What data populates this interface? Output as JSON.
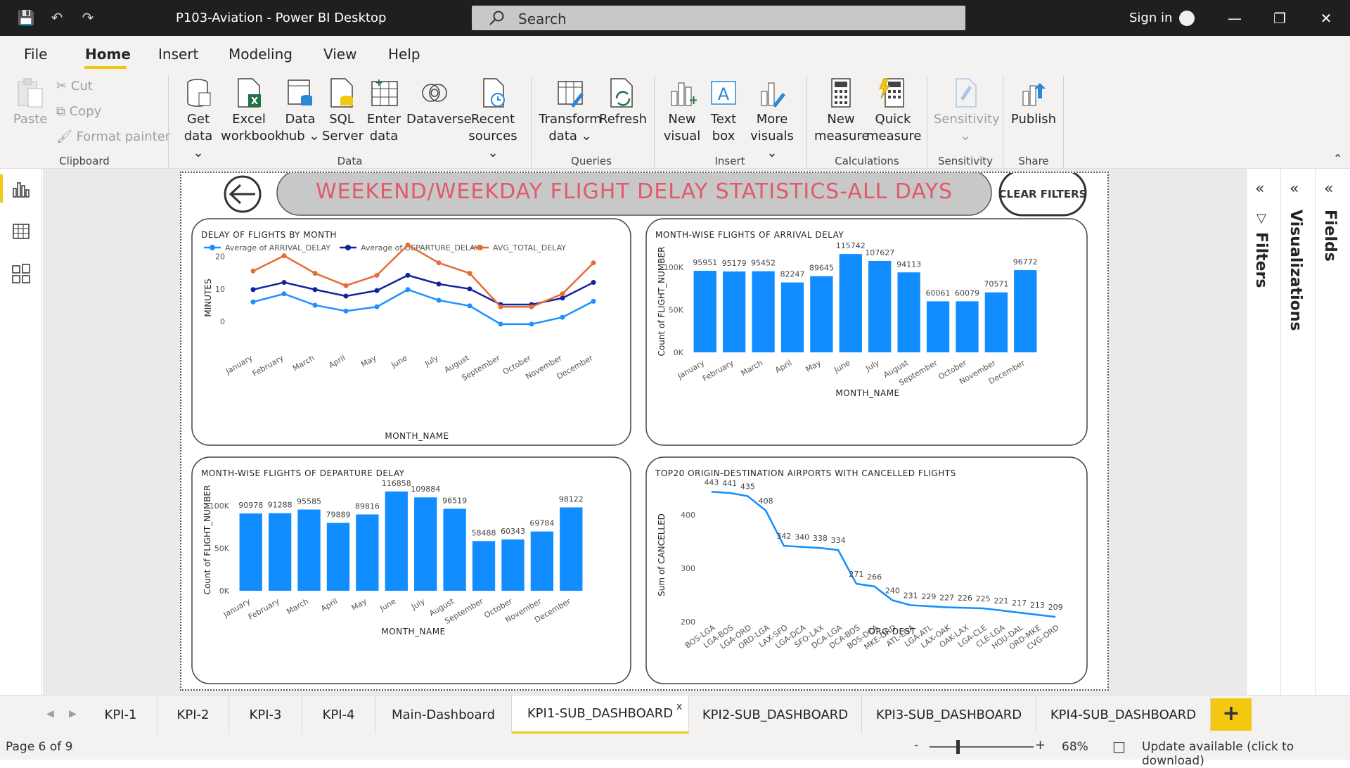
{
  "window": {
    "title": "P103-Aviation - Power BI Desktop",
    "search_placeholder": "Search",
    "sign_in": "Sign in"
  },
  "menu": [
    "File",
    "Home",
    "Insert",
    "Modeling",
    "View",
    "Help"
  ],
  "ribbon": {
    "clipboard": {
      "paste": "Paste",
      "cut": "Cut",
      "copy": "Copy",
      "format_painter": "Format painter",
      "group": "Clipboard"
    },
    "data": {
      "get_data": [
        "Get",
        "data ⌄"
      ],
      "excel": [
        "Excel",
        "workbook"
      ],
      "data_hub": [
        "Data",
        "hub ⌄"
      ],
      "sql": [
        "SQL",
        "Server"
      ],
      "enter": [
        "Enter",
        "data"
      ],
      "dataverse": [
        "Dataverse",
        ""
      ],
      "recent": [
        "Recent",
        "sources ⌄"
      ],
      "group": "Data"
    },
    "queries": {
      "transform": [
        "Transform",
        "data ⌄"
      ],
      "refresh": [
        "Refresh",
        ""
      ],
      "group": "Queries"
    },
    "insert": {
      "new_visual": [
        "New",
        "visual"
      ],
      "text_box": [
        "Text",
        "box"
      ],
      "more_visuals": [
        "More",
        "visuals ⌄"
      ],
      "group": "Insert"
    },
    "calculations": {
      "new_measure": [
        "New",
        "measure"
      ],
      "quick_measure": [
        "Quick",
        "measure"
      ],
      "group": "Calculations"
    },
    "sensitivity": {
      "label": "Sensitivity",
      "group": "Sensitivity"
    },
    "share": {
      "publish": "Publish",
      "group": "Share"
    }
  },
  "panes": {
    "filters": "Filters",
    "visualizations": "Visualizations",
    "fields": "Fields"
  },
  "report": {
    "title": "WEEKEND/WEEKDAY FLIGHT DELAY STATISTICS-ALL DAYS",
    "clear_filters": "CLEAR FILTERS"
  },
  "chart_data": [
    {
      "type": "line",
      "title": "DELAY OF FLIGHTS BY MONTH",
      "xlabel": "MONTH_NAME",
      "ylabel": "MINUTES",
      "legend_position": "top",
      "categories": [
        "January",
        "February",
        "March",
        "April",
        "May",
        "June",
        "July",
        "August",
        "September",
        "October",
        "November",
        "December"
      ],
      "yticks": [
        0,
        10,
        20
      ],
      "ylim": [
        -3,
        24
      ],
      "series": [
        {
          "name": "Average of ARRIVAL_DELAY",
          "color": "#1e90ff",
          "values": [
            6,
            8.5,
            5,
            3.2,
            4.5,
            9.8,
            6.5,
            4.8,
            -0.8,
            -0.8,
            1.3,
            6.2
          ]
        },
        {
          "name": "Average of DEPARTURE_DELAY",
          "color": "#12239e",
          "values": [
            9.8,
            12,
            9.8,
            7.8,
            9.5,
            14.2,
            11.5,
            10,
            5.2,
            5.2,
            7.2,
            12
          ]
        },
        {
          "name": "AVG_TOTAL_DELAY",
          "color": "#e66c37",
          "values": [
            15.5,
            20.2,
            14.8,
            11,
            14.2,
            23.5,
            18,
            14.8,
            4.5,
            4.5,
            8.5,
            18
          ]
        }
      ]
    },
    {
      "type": "bar",
      "title": "MONTH-WISE FLIGHTS OF ARRIVAL DELAY",
      "xlabel": "MONTH_NAME",
      "ylabel": "Count of FLIGHT_NUMBER",
      "categories": [
        "January",
        "February",
        "March",
        "April",
        "May",
        "June",
        "July",
        "August",
        "September",
        "October",
        "November",
        "December"
      ],
      "values": [
        95951,
        95179,
        95452,
        82247,
        89645,
        115742,
        107627,
        94113,
        60061,
        60079,
        70571,
        96772
      ],
      "yticks": [
        "0K",
        "50K",
        "100K"
      ],
      "ylim": [
        0,
        120000
      ]
    },
    {
      "type": "bar",
      "title": "MONTH-WISE FLIGHTS OF DEPARTURE DELAY",
      "xlabel": "MONTH_NAME",
      "ylabel": "Count of FLIGHT_NUMBER",
      "categories": [
        "January",
        "February",
        "March",
        "April",
        "May",
        "June",
        "July",
        "August",
        "September",
        "October",
        "November",
        "December"
      ],
      "values": [
        90978,
        91288,
        95585,
        79889,
        89816,
        116858,
        109884,
        96519,
        58488,
        60343,
        69784,
        98122
      ],
      "yticks": [
        "0K",
        "50K",
        "100K"
      ],
      "ylim": [
        0,
        120000
      ]
    },
    {
      "type": "line",
      "title": "TOP20 ORIGIN-DESTINATION AIRPORTS WITH CANCELLED FLIGHTS",
      "xlabel": "ORG-DEST",
      "ylabel": "Sum of CANCELLED",
      "categories": [
        "BOS-LGA",
        "LGA-BOS",
        "LGA-ORD",
        "ORD-LGA",
        "LAX-SFO",
        "LGA-DCA",
        "SFO-LAX",
        "DCA-LGA",
        "DCA-BOS",
        "BOS-DCA",
        "MKE-ORD",
        "ATL-LGA",
        "LGA-ATL",
        "LAX-OAK",
        "OAK-LAX",
        "LGA-CLE",
        "CLE-LGA",
        "HOU-DAL",
        "ORD-MKE",
        "CVG-ORD"
      ],
      "values": [
        443,
        441,
        435,
        408,
        342,
        340,
        338,
        334,
        271,
        266,
        240,
        231,
        229,
        227,
        226,
        225,
        221,
        217,
        213,
        209
      ],
      "yticks": [
        200,
        300,
        400
      ],
      "ylim": [
        200,
        450
      ]
    }
  ],
  "tabs": [
    "KPI-1",
    "KPI-2",
    "KPI-3",
    "KPI-4",
    "Main-Dashboard",
    "KPI1-SUB_DASHBOARD",
    "KPI2-SUB_DASHBOARD",
    "KPI3-SUB_DASHBOARD",
    "KPI4-SUB_DASHBOARD"
  ],
  "active_tab": "KPI1-SUB_DASHBOARD",
  "status": {
    "page": "Page 6 of 9",
    "zoom": "68%",
    "update": "Update available (click to download)"
  }
}
